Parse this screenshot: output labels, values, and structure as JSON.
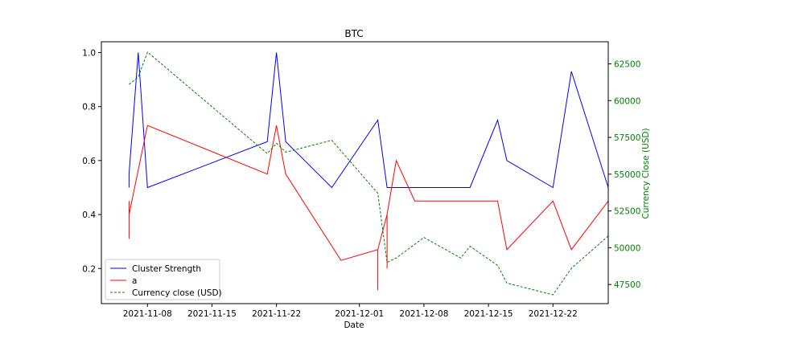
{
  "chart_data": {
    "type": "line",
    "title": "BTC",
    "xlabel": "Date",
    "ylabel": "",
    "y2label": "Currency Close (USD)",
    "x_axis_type": "date",
    "xlim": [
      "2021-11-03",
      "2021-12-28"
    ],
    "ylim": [
      0.07,
      1.04
    ],
    "y2lim": [
      46200,
      64000
    ],
    "x_ticks": [
      "2021-11-08",
      "2021-11-15",
      "2021-11-22",
      "2021-12-01",
      "2021-12-08",
      "2021-12-15",
      "2021-12-22"
    ],
    "y_ticks": [
      "0.2",
      "0.4",
      "0.6",
      "0.8",
      "1.0"
    ],
    "y2_ticks": [
      "47500",
      "50000",
      "52500",
      "55000",
      "57500",
      "60000",
      "62500"
    ],
    "grid": false,
    "legend_position": "lower left",
    "series": [
      {
        "name": "Cluster Strength",
        "axis": "left",
        "color": "#0000ff",
        "style": "solid",
        "points": [
          [
            "2021-11-06",
            0.5
          ],
          [
            "2021-11-06",
            0.55
          ],
          [
            "2021-11-07",
            1.0
          ],
          [
            "2021-11-08",
            0.5
          ],
          [
            "2021-11-21",
            0.67
          ],
          [
            "2021-11-22",
            1.0
          ],
          [
            "2021-11-23",
            0.67
          ],
          [
            "2021-11-28",
            0.5
          ],
          [
            "2021-12-03",
            0.75
          ],
          [
            "2021-12-04",
            0.5
          ],
          [
            "2021-12-13",
            0.5
          ],
          [
            "2021-12-16",
            0.75
          ],
          [
            "2021-12-17",
            0.6
          ],
          [
            "2021-12-22",
            0.5
          ],
          [
            "2021-12-24",
            0.93
          ],
          [
            "2021-12-28",
            0.5
          ]
        ]
      },
      {
        "name": "a",
        "axis": "left",
        "color": "#ff0000",
        "style": "solid",
        "points": [
          [
            "2021-11-06",
            0.45
          ],
          [
            "2021-11-06",
            0.31
          ],
          [
            "2021-11-06",
            0.4
          ],
          [
            "2021-11-08",
            0.73
          ],
          [
            "2021-11-21",
            0.55
          ],
          [
            "2021-11-22",
            0.73
          ],
          [
            "2021-11-23",
            0.55
          ],
          [
            "2021-11-29",
            0.23
          ],
          [
            "2021-12-03",
            0.27
          ],
          [
            "2021-12-03",
            0.12
          ],
          [
            "2021-12-03",
            0.27
          ],
          [
            "2021-12-04",
            0.4
          ],
          [
            "2021-12-04",
            0.2
          ],
          [
            "2021-12-04",
            0.4
          ],
          [
            "2021-12-05",
            0.6
          ],
          [
            "2021-12-07",
            0.45
          ],
          [
            "2021-12-16",
            0.45
          ],
          [
            "2021-12-17",
            0.27
          ],
          [
            "2021-12-22",
            0.45
          ],
          [
            "2021-12-24",
            0.27
          ],
          [
            "2021-12-28",
            0.45
          ]
        ]
      },
      {
        "name": "Currency close (USD)",
        "axis": "right",
        "color": "#008000",
        "style": "dashed",
        "points": [
          [
            "2021-11-06",
            61100
          ],
          [
            "2021-11-07",
            61600
          ],
          [
            "2021-11-08",
            63300
          ],
          [
            "2021-11-21",
            56400
          ],
          [
            "2021-11-22",
            57100
          ],
          [
            "2021-11-23",
            56500
          ],
          [
            "2021-11-28",
            57300
          ],
          [
            "2021-12-03",
            53700
          ],
          [
            "2021-12-04",
            49000
          ],
          [
            "2021-12-05",
            49300
          ],
          [
            "2021-12-08",
            50700
          ],
          [
            "2021-12-12",
            49300
          ],
          [
            "2021-12-13",
            50100
          ],
          [
            "2021-12-16",
            48800
          ],
          [
            "2021-12-17",
            47600
          ],
          [
            "2021-12-22",
            46800
          ],
          [
            "2021-12-24",
            48600
          ],
          [
            "2021-12-28",
            50800
          ]
        ]
      }
    ]
  }
}
